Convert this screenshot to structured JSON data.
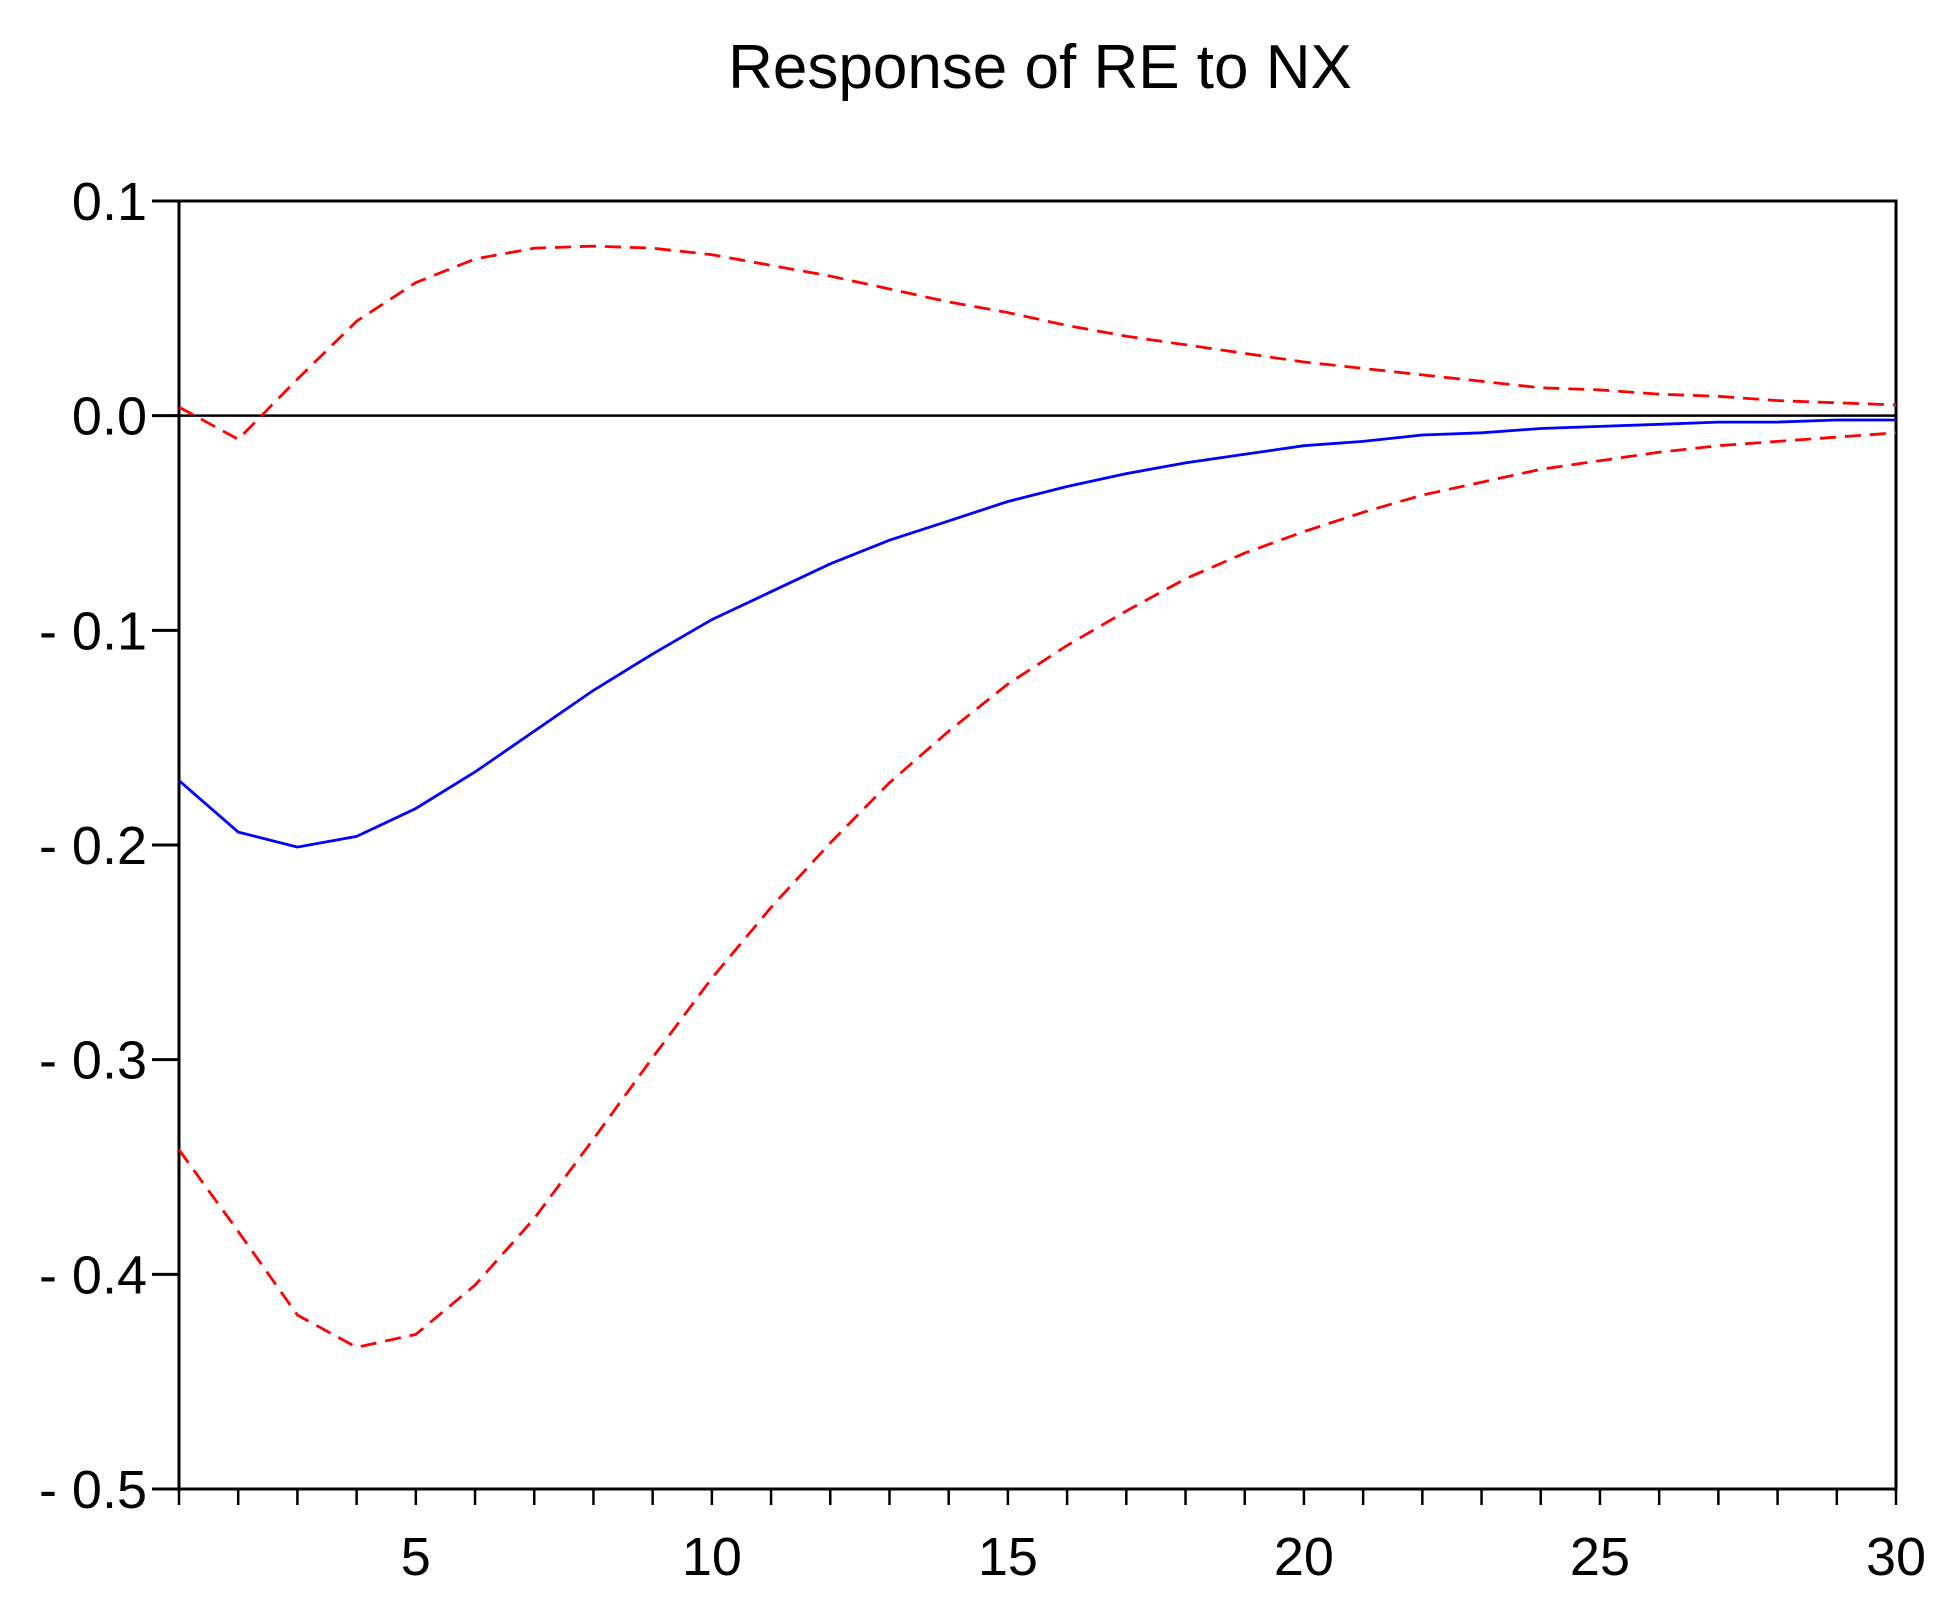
{
  "chart_data": {
    "type": "line",
    "title": "Response of RE to NX",
    "xlabel": "",
    "ylabel": "",
    "xlim": [
      1,
      30
    ],
    "ylim": [
      -0.5,
      0.1
    ],
    "x_ticks": [
      5,
      10,
      15,
      20,
      25,
      30
    ],
    "x_tick_labels": [
      "5",
      "10",
      "15",
      "20",
      "25",
      "30"
    ],
    "y_ticks": [
      0.1,
      0.0,
      -0.1,
      -0.2,
      -0.3,
      -0.4,
      -0.5
    ],
    "y_tick_labels": [
      "0.1",
      "0.0",
      "- 0.1",
      "- 0.2",
      "- 0.3",
      "- 0.4",
      "- 0.5"
    ],
    "grid": false,
    "zero_line": true,
    "x": [
      1,
      2,
      3,
      4,
      5,
      6,
      7,
      8,
      9,
      10,
      11,
      12,
      13,
      14,
      15,
      16,
      17,
      18,
      19,
      20,
      21,
      22,
      23,
      24,
      25,
      26,
      27,
      28,
      29,
      30
    ],
    "series": [
      {
        "style": "solid",
        "color": "#0000ff",
        "values": [
          -0.17,
          -0.194,
          -0.201,
          -0.196,
          -0.183,
          -0.166,
          -0.147,
          -0.128,
          -0.111,
          -0.095,
          -0.082,
          -0.069,
          -0.058,
          -0.049,
          -0.04,
          -0.033,
          -0.027,
          -0.022,
          -0.018,
          -0.014,
          -0.012,
          -0.009,
          -0.008,
          -0.006,
          -0.005,
          -0.004,
          -0.003,
          -0.003,
          -0.002,
          -0.002
        ]
      },
      {
        "style": "dashed",
        "color": "#ff0000",
        "values": [
          0.004,
          -0.011,
          0.017,
          0.044,
          0.062,
          0.073,
          0.078,
          0.079,
          0.078,
          0.075,
          0.07,
          0.065,
          0.059,
          0.053,
          0.048,
          0.042,
          0.037,
          0.033,
          0.029,
          0.025,
          0.022,
          0.019,
          0.016,
          0.013,
          0.012,
          0.01,
          0.009,
          0.007,
          0.006,
          0.005
        ]
      },
      {
        "style": "dashed",
        "color": "#ff0000",
        "values": [
          -0.342,
          -0.38,
          -0.419,
          -0.434,
          -0.428,
          -0.405,
          -0.374,
          -0.337,
          -0.299,
          -0.262,
          -0.229,
          -0.199,
          -0.171,
          -0.147,
          -0.125,
          -0.107,
          -0.091,
          -0.076,
          -0.064,
          -0.054,
          -0.045,
          -0.037,
          -0.031,
          -0.025,
          -0.021,
          -0.017,
          -0.014,
          -0.012,
          -0.01,
          -0.008
        ]
      }
    ]
  }
}
